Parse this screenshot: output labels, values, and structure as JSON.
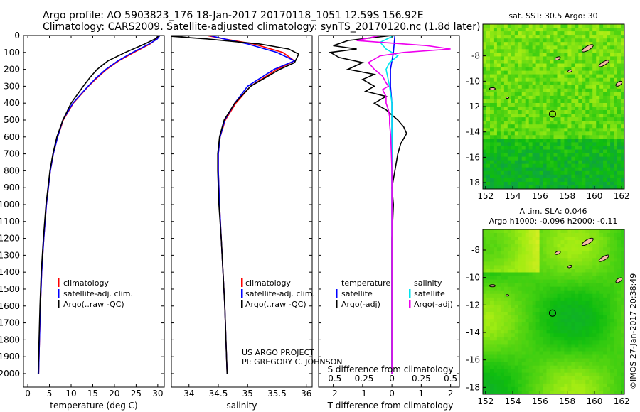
{
  "header": {
    "line1": "Argo profile: AO 5903823_176 18-Jan-2017 20170118_1051 12.59S 156.92E",
    "line2": "Climatology: CARS2009. Satellite-adjusted climatology: synTS_20170120.nc (1.8d later)"
  },
  "colors": {
    "climatology": "#ff0000",
    "satellite_adj": "#0000ff",
    "argo": "#000000",
    "sal_satellite": "#00e5ee",
    "sal_argo": "#ee00ee"
  },
  "depth_axis": {
    "ticks": [
      0,
      100,
      200,
      300,
      400,
      500,
      600,
      700,
      800,
      900,
      1000,
      1100,
      1200,
      1300,
      1400,
      1500,
      1600,
      1700,
      1800,
      1900,
      2000
    ],
    "ylim": [
      0,
      2080
    ]
  },
  "chart_data": [
    {
      "id": "temperature",
      "type": "line",
      "xlabel": "temperature (deg C)",
      "xlim": [
        -1,
        31.5
      ],
      "xticks": [
        0,
        5,
        10,
        15,
        20,
        25,
        30
      ],
      "xtick_labels": [
        "0",
        "5",
        "10",
        "15",
        "20",
        "25",
        "30"
      ],
      "ylim": [
        0,
        2080
      ],
      "legend": {
        "position": "lower-left",
        "entries": [
          "climatology",
          "satellite-adj. clim.",
          "Argo(..raw -QC)"
        ]
      },
      "series": [
        {
          "name": "climatology",
          "depth": [
            0,
            20,
            50,
            100,
            150,
            200,
            250,
            300,
            400,
            500,
            600,
            700,
            800,
            1000,
            1200,
            1400,
            1600,
            1800,
            2000
          ],
          "values": [
            30.3,
            29.8,
            28.2,
            24.5,
            21.0,
            18.2,
            16.0,
            14.0,
            10.5,
            8.2,
            6.9,
            5.9,
            5.2,
            4.3,
            3.7,
            3.2,
            2.9,
            2.7,
            2.5
          ]
        },
        {
          "name": "satellite-adj. clim.",
          "depth": [
            0,
            20,
            50,
            100,
            150,
            200,
            250,
            300,
            400,
            500,
            600,
            700,
            800,
            1000,
            1200,
            1400,
            1600,
            1800,
            2000
          ],
          "values": [
            30.5,
            29.9,
            28.0,
            24.2,
            20.8,
            18.0,
            15.8,
            13.9,
            10.4,
            8.1,
            6.9,
            5.9,
            5.2,
            4.3,
            3.7,
            3.2,
            2.9,
            2.7,
            2.5
          ]
        },
        {
          "name": "Argo(..raw -QC)",
          "depth": [
            0,
            20,
            50,
            100,
            150,
            200,
            250,
            300,
            400,
            500,
            600,
            700,
            800,
            1000,
            1200,
            1400,
            1600,
            1800,
            2000
          ],
          "values": [
            30.2,
            29.4,
            27.0,
            22.5,
            18.5,
            16.0,
            14.3,
            12.8,
            10.0,
            8.1,
            6.7,
            5.8,
            5.1,
            4.2,
            3.6,
            3.1,
            2.8,
            2.6,
            2.4
          ]
        }
      ]
    },
    {
      "id": "salinity",
      "type": "line",
      "xlabel": "salinity",
      "xlim": [
        33.7,
        36.1
      ],
      "xticks": [
        34,
        34.5,
        35,
        35.5,
        36
      ],
      "xtick_labels": [
        "34",
        "34.5",
        "35",
        "35.5",
        "36"
      ],
      "ylim": [
        0,
        2080
      ],
      "legend": {
        "position": "lower-left",
        "entries": [
          "climatology",
          "satellite-adj. clim.",
          "Argo(..raw -QC)"
        ]
      },
      "annotation": [
        "US ARGO PROJECT",
        "PI: GREGORY C. JOHNSON"
      ],
      "series": [
        {
          "name": "climatology",
          "depth": [
            0,
            20,
            50,
            100,
            150,
            200,
            300,
            400,
            500,
            600,
            700,
            800,
            1000,
            1200,
            1400,
            1600,
            1800,
            2000
          ],
          "values": [
            34.3,
            34.6,
            35.1,
            35.6,
            35.8,
            35.5,
            35.05,
            34.8,
            34.62,
            34.53,
            34.5,
            34.5,
            34.52,
            34.55,
            34.58,
            34.61,
            34.63,
            34.65
          ]
        },
        {
          "name": "satellite-adj. clim.",
          "depth": [
            0,
            20,
            50,
            100,
            150,
            200,
            300,
            400,
            500,
            600,
            700,
            800,
            1000,
            1200,
            1400,
            1600,
            1800,
            2000
          ],
          "values": [
            34.35,
            34.6,
            35.0,
            35.5,
            35.8,
            35.45,
            35.0,
            34.78,
            34.61,
            34.53,
            34.5,
            34.5,
            34.52,
            34.55,
            34.58,
            34.61,
            34.63,
            34.65
          ]
        },
        {
          "name": "Argo(..raw -QC)",
          "depth": [
            0,
            5,
            20,
            50,
            80,
            110,
            160,
            200,
            300,
            400,
            500,
            600,
            700,
            800,
            1000,
            1200,
            1400,
            1600,
            1800,
            2000
          ],
          "values": [
            34.1,
            33.7,
            34.3,
            35.2,
            35.7,
            35.87,
            35.8,
            35.55,
            35.05,
            34.78,
            34.6,
            34.52,
            34.49,
            34.49,
            34.51,
            34.55,
            34.58,
            34.61,
            34.63,
            34.65
          ]
        }
      ]
    },
    {
      "id": "differences",
      "type": "line",
      "xlabel_bottom": "T difference from climatology",
      "xlabel_top": "S difference from climatology",
      "xlim": [
        -2.5,
        2.3
      ],
      "xticks_T": [
        -2,
        -1,
        0,
        1,
        2
      ],
      "xtick_labels_T": [
        "-2",
        "-1",
        "0",
        "1",
        "2"
      ],
      "xticks_S": [
        -0.5,
        -0.25,
        0,
        0.25,
        0.5
      ],
      "xtick_labels_S": [
        "-0.5",
        "-0.25",
        "0",
        "0.25",
        "0.5"
      ],
      "ylim": [
        0,
        2080
      ],
      "legend": {
        "position": "lower",
        "temperature_title": "temperature",
        "salinity_title": "salinity",
        "entries": [
          "satellite",
          "Argo(-adj)",
          "satellite",
          "Argo(-adj)"
        ]
      },
      "series": [
        {
          "name": "temperature satellite",
          "depth": [
            0,
            100,
            200,
            300,
            400,
            500,
            600,
            800,
            1000,
            1500,
            2000
          ],
          "values": [
            0.1,
            0.05,
            -0.05,
            -0.05,
            0.0,
            0.0,
            0.0,
            0.0,
            0.0,
            0.0,
            0.0
          ]
        },
        {
          "name": "temperature Argo(-adj)",
          "depth": [
            0,
            30,
            60,
            80,
            100,
            130,
            160,
            200,
            230,
            260,
            300,
            330,
            360,
            400,
            440,
            470,
            500,
            540,
            580,
            640,
            700,
            800,
            900,
            1000,
            1200,
            1500,
            1800,
            2000
          ],
          "values": [
            0.0,
            -1.5,
            -2.0,
            -1.2,
            -2.1,
            -1.8,
            -1.0,
            -1.5,
            -0.6,
            -1.0,
            -0.6,
            -0.9,
            -0.2,
            -0.6,
            -0.2,
            0.0,
            0.2,
            0.4,
            0.5,
            0.3,
            0.2,
            0.1,
            0.0,
            0.05,
            0.0,
            0.0,
            0.0,
            0.0
          ]
        },
        {
          "name": "salinity satellite",
          "depth": [
            0,
            40,
            80,
            120,
            160,
            200,
            300,
            400,
            600,
            800,
            1000,
            1500,
            2000
          ],
          "values": [
            0.02,
            -0.1,
            -0.05,
            0.05,
            -0.02,
            -0.05,
            -0.02,
            0.0,
            0.0,
            0.0,
            0.0,
            0.0,
            0.0
          ]
        },
        {
          "name": "salinity Argo(-adj)",
          "depth": [
            0,
            30,
            60,
            80,
            100,
            120,
            160,
            200,
            240,
            280,
            300,
            320,
            360,
            400,
            440,
            480,
            520,
            600,
            800,
            1000,
            1400,
            2000
          ],
          "values": [
            -0.1,
            -0.3,
            0.3,
            0.5,
            0.1,
            -0.1,
            -0.2,
            -0.15,
            -0.08,
            -0.05,
            -0.03,
            -0.08,
            -0.05,
            -0.05,
            -0.03,
            -0.02,
            -0.02,
            -0.01,
            0.0,
            0.0,
            0.0,
            0.0
          ]
        }
      ]
    },
    {
      "id": "sst_map",
      "type": "heatmap",
      "title": "sat. SST: 30.5 Argo: 30",
      "xticks": [
        152,
        154,
        156,
        158,
        160,
        162
      ],
      "xtick_labels": [
        "152",
        "154",
        "156",
        "158",
        "160",
        "162"
      ],
      "yticks": [
        -8,
        -10,
        -12,
        -14,
        -16,
        -18
      ],
      "ytick_labels": [
        "-8",
        "-10",
        "-12",
        "-14",
        "-16",
        "-18"
      ],
      "xlim": [
        151.8,
        162.2
      ],
      "ylim": [
        -18.5,
        -5.5
      ],
      "argo_position": {
        "lon": 156.92,
        "lat": -12.59
      }
    },
    {
      "id": "sla_map",
      "type": "heatmap",
      "title_line1": "Altim. SLA: 0.046",
      "title_line2": "Argo h1000: -0.096 h2000: -0.11",
      "xticks": [
        152,
        154,
        156,
        158,
        160,
        162
      ],
      "xtick_labels": [
        "152",
        "154",
        "156",
        "158",
        "160",
        "162"
      ],
      "yticks": [
        -8,
        -10,
        -12,
        -14,
        -16,
        -18
      ],
      "ytick_labels": [
        "-8",
        "-10",
        "-12",
        "-14",
        "-16",
        "-18"
      ],
      "xlim": [
        151.8,
        162.2
      ],
      "ylim": [
        -18.5,
        -6.5
      ],
      "argo_position": {
        "lon": 156.92,
        "lat": -12.59
      }
    }
  ],
  "credit": "©IMOS 27-Jan-2017 20:38:49"
}
